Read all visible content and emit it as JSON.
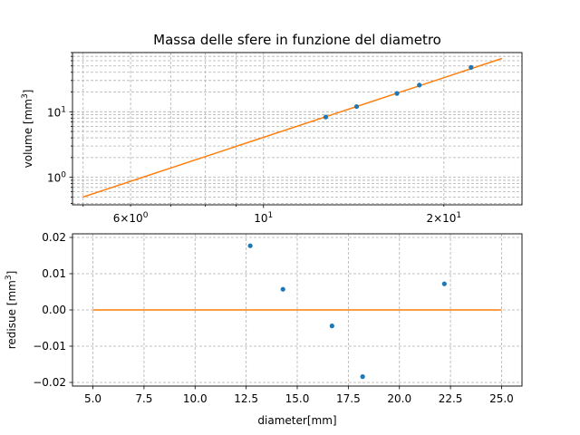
{
  "chart_data": [
    {
      "type": "scatter",
      "title": "Massa delle sfere in funzione del diametro",
      "xlabel": "",
      "ylabel": "volume [mm$^3$]",
      "ylabel_parts": {
        "text": "volume [mm",
        "sup": "3",
        "close": "]"
      },
      "xscale": "log",
      "yscale": "log",
      "xlim": [
        4.8,
        27
      ],
      "ylim": [
        0.38,
        80
      ],
      "grid": "both (major and minor), dashed",
      "x_ticks": [
        {
          "value": 6,
          "label_base": "6×10",
          "label_exp": "0"
        },
        {
          "value": 10,
          "label_base": "10",
          "label_exp": "1"
        },
        {
          "value": 20,
          "label_base": "2×10",
          "label_exp": "1"
        }
      ],
      "y_ticks": [
        {
          "value": 1,
          "label_base": "10",
          "label_exp": "0"
        },
        {
          "value": 10,
          "label_base": "10",
          "label_exp": "1"
        }
      ],
      "series": [
        {
          "kind": "points",
          "color": "#1f77b4",
          "x": [
            12.7,
            14.3,
            16.7,
            18.2,
            22.2
          ],
          "y": [
            8.3,
            12.0,
            19.0,
            25.5,
            47.5
          ]
        },
        {
          "kind": "line",
          "color": "#ff7f0e",
          "x": [
            5.0,
            25.0
          ],
          "y": [
            0.5,
            65.0
          ]
        }
      ]
    },
    {
      "type": "scatter",
      "title": "",
      "xlabel": "diameter[mm]",
      "ylabel": "redisue [mm$^3$]",
      "ylabel_parts": {
        "text": "redisue [mm",
        "sup": "3",
        "close": "]"
      },
      "xlim": [
        4,
        26
      ],
      "ylim": [
        -0.021,
        0.021
      ],
      "grid": "major, dashed",
      "x_ticks": [
        "5.0",
        "7.5",
        "10.0",
        "12.5",
        "15.0",
        "17.5",
        "20.0",
        "22.5",
        "25.0"
      ],
      "y_ticks": [
        "0.02",
        "0.01",
        "0.00",
        "-0.01",
        "-0.02"
      ],
      "series": [
        {
          "kind": "errorbar",
          "color": "#1f77b4",
          "x": [
            12.7,
            14.3,
            16.7,
            18.2,
            22.2
          ],
          "y": [
            0.0177,
            0.0057,
            -0.0044,
            -0.0184,
            0.0072
          ],
          "yerr": [
            0.0006,
            0.0006,
            0.0006,
            0.0006,
            0.0006
          ]
        },
        {
          "kind": "line",
          "color": "#ff7f0e",
          "x": [
            5.0,
            25.0
          ],
          "y": [
            0.0,
            0.0
          ]
        }
      ]
    }
  ]
}
